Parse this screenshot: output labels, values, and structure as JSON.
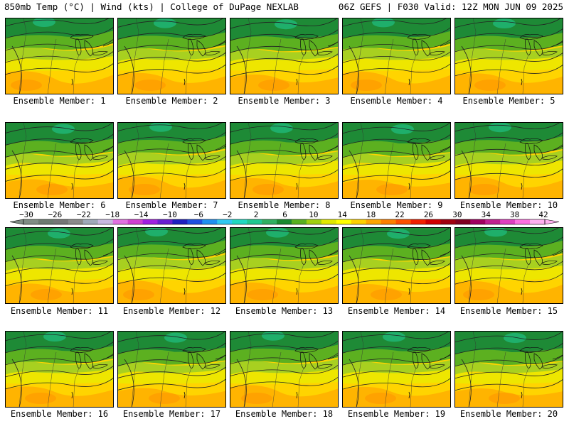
{
  "header": {
    "left": "850mb Temp (°C) | Wind (kts) | College of DuPage NEXLAB",
    "right": "06Z GEFS | F030 Valid: 12Z MON JUN 09 2025"
  },
  "members": [
    "Ensemble Member: 1",
    "Ensemble Member: 2",
    "Ensemble Member: 3",
    "Ensemble Member: 4",
    "Ensemble Member: 5",
    "Ensemble Member: 6",
    "Ensemble Member: 7",
    "Ensemble Member: 8",
    "Ensemble Member: 9",
    "Ensemble Member: 10",
    "Ensemble Member: 11",
    "Ensemble Member: 12",
    "Ensemble Member: 13",
    "Ensemble Member: 14",
    "Ensemble Member: 15",
    "Ensemble Member: 16",
    "Ensemble Member: 17",
    "Ensemble Member: 18",
    "Ensemble Member: 19",
    "Ensemble Member: 20"
  ],
  "colorbar": {
    "labels": [
      "−30",
      "−26",
      "−22",
      "−18",
      "−14",
      "−10",
      "−6",
      "−2",
      "2",
      "6",
      "10",
      "14",
      "18",
      "22",
      "26",
      "30",
      "34",
      "38",
      "42"
    ],
    "colors": [
      "#7f8c84",
      "#6c7a70",
      "#767676",
      "#8a8a8a",
      "#9fa9b9",
      "#c8b8e0",
      "#e070e0",
      "#d040d0",
      "#a020e0",
      "#6a1fd0",
      "#2020c0",
      "#2050e0",
      "#2090f0",
      "#30c8f0",
      "#20d8c0",
      "#20c890",
      "#30b060",
      "#1a8a30",
      "#58b020",
      "#a0d010",
      "#e0e800",
      "#ffff00",
      "#ffd000",
      "#ffa500",
      "#ff7f00",
      "#ff5000",
      "#f02000",
      "#d00000",
      "#a00010",
      "#800020",
      "#a00060",
      "#c02090",
      "#e040c0",
      "#ff70e0",
      "#ffb0f0"
    ]
  }
}
